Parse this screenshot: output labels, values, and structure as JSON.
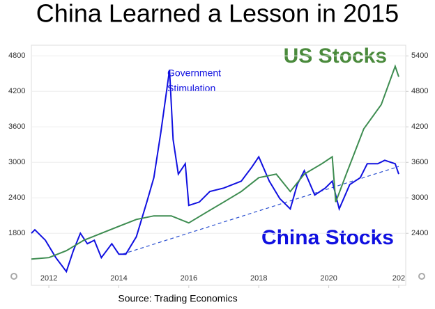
{
  "chart_data": {
    "type": "line",
    "title": "China Learned a Lesson in 2015",
    "source": "Source: Trading Economics",
    "annotations": {
      "stimulus": [
        "Government",
        "Stimulation"
      ],
      "us": "US Stocks",
      "china": "China Stocks"
    },
    "xlim": [
      2011.5,
      2022.2
    ],
    "xticks": [
      2012,
      2014,
      2016,
      2018,
      2020,
      {
        "value": 2022,
        "label": "202"
      }
    ],
    "ylim": [
      920,
      4980
    ],
    "yticks": [
      1800,
      2400,
      3000,
      3600,
      4200,
      4800
    ],
    "y2lim": [
      1520,
      5580
    ],
    "y2ticks": [
      2400,
      3000,
      3600,
      4200,
      4800,
      5400
    ],
    "series": [
      {
        "color": "#1010e0",
        "x": [
          2011.5,
          2011.6,
          2011.9,
          2012.2,
          2012.5,
          2012.7,
          2012.9,
          2013.1,
          2013.3,
          2013.5,
          2013.8,
          2014.0,
          2014.2,
          2014.5,
          2014.8,
          2015.0,
          2015.2,
          2015.45,
          2015.55,
          2015.7,
          2015.9,
          2016.0,
          2016.3,
          2016.6,
          2017.0,
          2017.5,
          2017.8,
          2018.0,
          2018.3,
          2018.6,
          2018.9,
          2019.1,
          2019.3,
          2019.6,
          2019.9,
          2020.1,
          2020.3,
          2020.6,
          2020.9,
          2021.1,
          2021.4,
          2021.6,
          2021.9,
          2022.0
        ],
        "values": [
          1800,
          1859,
          1682,
          1388,
          1153,
          1506,
          1800,
          1624,
          1682,
          1388,
          1624,
          1447,
          1447,
          1741,
          2329,
          2741,
          3506,
          4565,
          3388,
          2800,
          2976,
          2271,
          2329,
          2506,
          2565,
          2682,
          2918,
          3094,
          2682,
          2388,
          2212,
          2624,
          2859,
          2447,
          2565,
          2682,
          2212,
          2624,
          2741,
          2976,
          2976,
          3035,
          2976,
          2800
        ]
      },
      {
        "color": "#3d8c50",
        "axis": "y2",
        "x": [
          2011.5,
          2012.0,
          2012.5,
          2013.0,
          2013.5,
          2014.0,
          2014.5,
          2015.0,
          2015.5,
          2016.0,
          2016.5,
          2017.0,
          2017.5,
          2018.0,
          2018.5,
          2018.9,
          2019.3,
          2019.8,
          2020.1,
          2020.2,
          2020.5,
          2021.0,
          2021.5,
          2021.9,
          2022.0
        ],
        "values": [
          1965,
          1988,
          2106,
          2282,
          2400,
          2518,
          2635,
          2694,
          2694,
          2576,
          2753,
          2929,
          3106,
          3341,
          3400,
          3106,
          3400,
          3576,
          3694,
          2929,
          3400,
          4165,
          4576,
          5224,
          5047
        ]
      }
    ],
    "trendline": {
      "color": "#2a4fd0",
      "x": [
        2014.1,
        2022.0
      ],
      "values": [
        1447,
        2930
      ]
    }
  }
}
